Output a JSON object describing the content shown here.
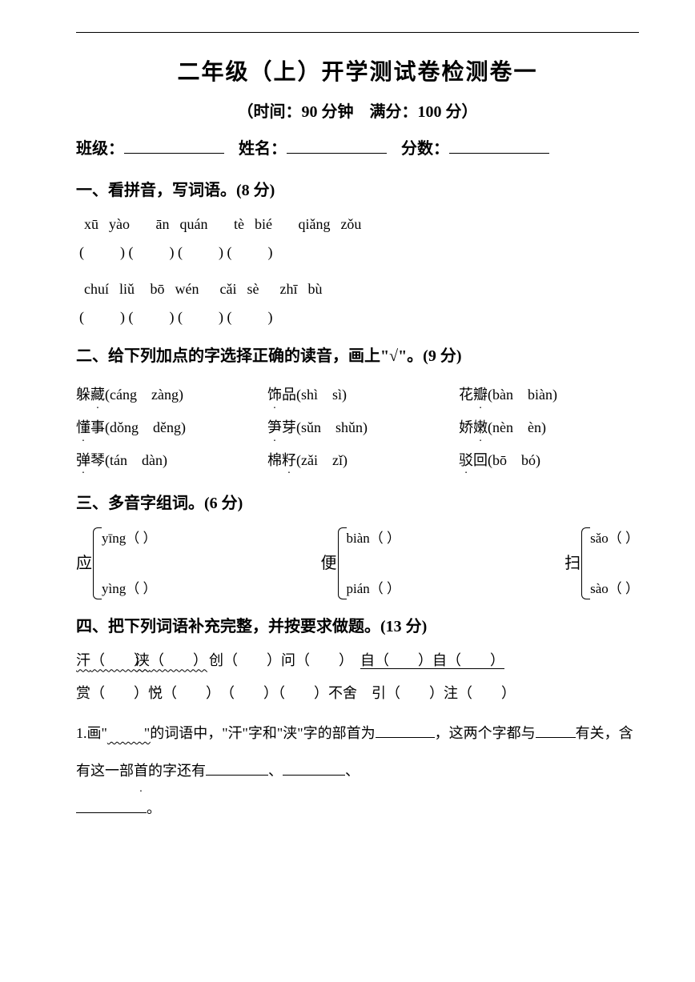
{
  "page": {
    "title": "二年级（上）开学测试卷检测卷一",
    "subtitle": "（时间：90 分钟　满分：100 分）",
    "info": {
      "class_label": "班级：",
      "name_label": "姓名：",
      "score_label": "分数："
    }
  },
  "q1": {
    "header": "一、看拼音，写词语。(8 分)",
    "pinyin_row1": "xū  yào     ān  quán     tè  bié     qiǎng  zǒu",
    "paren_row1": "(          ) (          ) (          ) (          )",
    "pinyin_row2": "chuí  liǔ   bō  wén    cǎi  sè    zhī  bù",
    "paren_row2": "(          ) (          ) (          ) (          )"
  },
  "q2": {
    "header": "二、给下列加点的字选择正确的读音，画上\"√\"。(9 分)",
    "rows": [
      [
        {
          "pre": "躲",
          "dot": "藏",
          "post": "(cáng　zàng)"
        },
        {
          "pre": "",
          "dot": "饰",
          "post": "品(shì　sì)"
        },
        {
          "pre": "花",
          "dot": "瓣",
          "post": "(bàn　biàn)"
        }
      ],
      [
        {
          "pre": "",
          "dot": "懂",
          "post": "事(dǒng　děng)"
        },
        {
          "pre": "",
          "dot": "笋",
          "post": "芽(sǔn　shǔn)"
        },
        {
          "pre": "娇",
          "dot": "嫩",
          "post": "(nèn　èn)"
        }
      ],
      [
        {
          "pre": "",
          "dot": "弹",
          "post": "琴(tán　dàn)"
        },
        {
          "pre": "棉",
          "dot": "籽",
          "post": "(zǎi　zǐ)"
        },
        {
          "pre": "",
          "dot": "驳",
          "post": "回(bō　bó)"
        }
      ]
    ]
  },
  "q3": {
    "header": "三、多音字组词。(6 分)",
    "groups": [
      {
        "char": "应",
        "top": "yīng（        ）",
        "bottom": "yìng（        ）"
      },
      {
        "char": "便",
        "top": "biàn（        ）",
        "bottom": "pián（        ）"
      },
      {
        "char": "扫",
        "top": "sǎo（        ）",
        "bottom": "sào（        ）"
      }
    ]
  },
  "q4": {
    "header": "四、把下列词语补充完整，并按要求做题。(13 分)",
    "line1_a": "汗",
    "line1_b": "浃",
    "line1_c": "　创（　　）问（　　）　",
    "line1_d": "自（　　）自（　　）",
    "line2": "赏（　　）悦（　　）　（　　）（　　）不舍　引（　　）注（　　）",
    "body_1a": "1.画\"",
    "body_1b": "\"的词语中，\"汗\"字和\"浃\"字的部首为",
    "body_1c": "，这两个字都与",
    "body_1d": "有关，含有这一部",
    "body_1dot": "首",
    "body_1e": "的字还有",
    "body_1f": "、",
    "body_1g": "、",
    "body_1h": "。"
  }
}
